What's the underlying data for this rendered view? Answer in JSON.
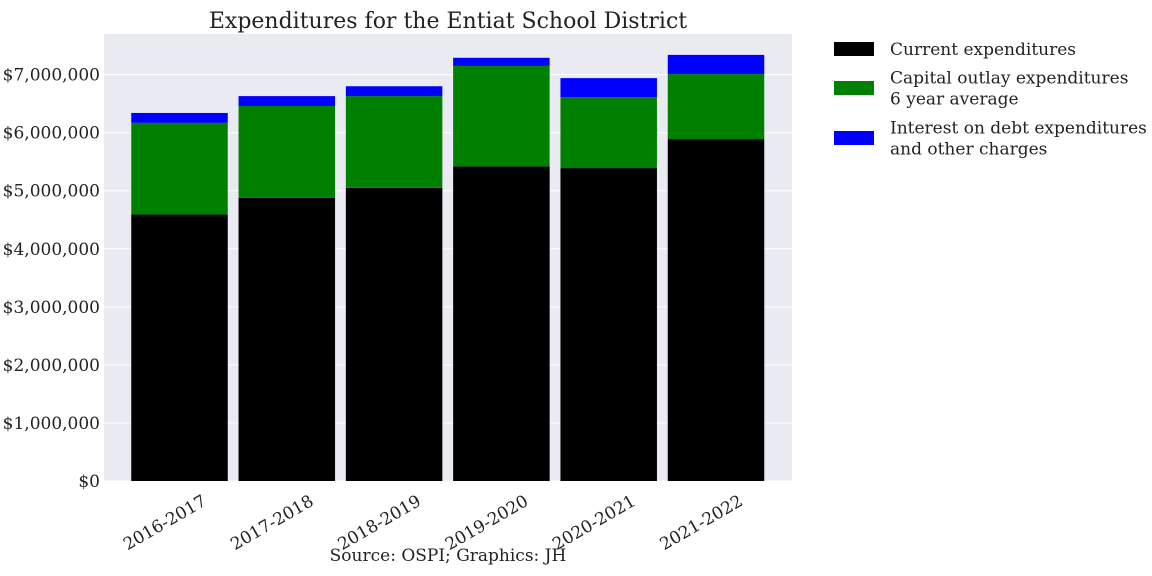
{
  "chart_data": {
    "type": "bar",
    "stacked": true,
    "title": "Expenditures for the Entiat School District",
    "source": "Source: OSPI; Graphics: JH",
    "categories": [
      "2016-2017",
      "2017-2018",
      "2018-2019",
      "2019-2020",
      "2020-2021",
      "2021-2022"
    ],
    "series": [
      {
        "name": "Current expenditures",
        "color": "#000000",
        "values": [
          4590000,
          4880000,
          5050000,
          5420000,
          5390000,
          5890000
        ]
      },
      {
        "name": [
          "Capital outlay expenditures",
          "6 year average"
        ],
        "color": "#008000",
        "values": [
          1580000,
          1580000,
          1580000,
          1730000,
          1220000,
          1120000
        ]
      },
      {
        "name": [
          "Interest on debt expenditures",
          "and other charges"
        ],
        "color": "#0000ff",
        "values": [
          170000,
          170000,
          170000,
          140000,
          330000,
          330000
        ]
      }
    ],
    "y_ticks": [
      "$0",
      "$1,000,000",
      "$2,000,000",
      "$3,000,000",
      "$4,000,000",
      "$5,000,000",
      "$6,000,000",
      "$7,000,000"
    ],
    "ylim": [
      0,
      7700000
    ],
    "grid": true,
    "legend_position": "outside-right-top",
    "xlabel": "",
    "ylabel": "",
    "x_tick_rotation": 30
  }
}
